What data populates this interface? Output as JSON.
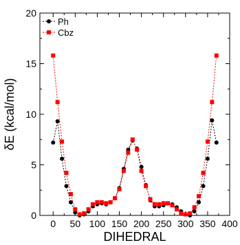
{
  "chart_data": {
    "type": "line",
    "title": "",
    "xlabel": "DIHEDRAL",
    "ylabel": "δE (kcal/mol)",
    "xlim": [
      -30,
      400
    ],
    "ylim": [
      0,
      20
    ],
    "xticks": [
      0,
      50,
      100,
      150,
      200,
      250,
      300,
      350,
      400
    ],
    "yticks": [
      0,
      5,
      10,
      15,
      20
    ],
    "legend_position": "top-left",
    "grid": false,
    "series": [
      {
        "name": "Ph",
        "color": "#000000",
        "marker": "circle",
        "line": "dotted",
        "points": [
          [
            0,
            7.2
          ],
          [
            10,
            9.3
          ],
          [
            20,
            5.6
          ],
          [
            30,
            2.9
          ],
          [
            40,
            1.3
          ],
          [
            50,
            0.3
          ],
          [
            60,
            0.0
          ],
          [
            70,
            0.1
          ],
          [
            80,
            0.4
          ],
          [
            90,
            0.9
          ],
          [
            100,
            1.1
          ],
          [
            110,
            1.2
          ],
          [
            120,
            1.1
          ],
          [
            130,
            1.3
          ],
          [
            140,
            1.7
          ],
          [
            150,
            2.7
          ],
          [
            160,
            4.6
          ],
          [
            170,
            6.5
          ],
          [
            180,
            7.4
          ],
          [
            190,
            6.6
          ],
          [
            200,
            4.8
          ],
          [
            210,
            3.0
          ],
          [
            220,
            1.5
          ],
          [
            230,
            0.9
          ],
          [
            240,
            0.9
          ],
          [
            250,
            1.0
          ],
          [
            260,
            1.2
          ],
          [
            270,
            1.1
          ],
          [
            280,
            0.8
          ],
          [
            290,
            0.4
          ],
          [
            300,
            0.1
          ],
          [
            310,
            0.0
          ],
          [
            320,
            0.4
          ],
          [
            330,
            1.3
          ],
          [
            340,
            2.9
          ],
          [
            350,
            5.6
          ],
          [
            360,
            9.4
          ],
          [
            370,
            7.2
          ]
        ]
      },
      {
        "name": "Cbz",
        "color": "#ff0000",
        "marker": "square",
        "line": "dotted",
        "points": [
          [
            0,
            15.8
          ],
          [
            10,
            11.2
          ],
          [
            20,
            7.3
          ],
          [
            30,
            4.2
          ],
          [
            40,
            2.1
          ],
          [
            50,
            0.6
          ],
          [
            60,
            0.1
          ],
          [
            70,
            0.2
          ],
          [
            80,
            0.6
          ],
          [
            90,
            1.1
          ],
          [
            100,
            1.3
          ],
          [
            110,
            1.3
          ],
          [
            120,
            1.2
          ],
          [
            130,
            1.3
          ],
          [
            140,
            1.7
          ],
          [
            150,
            2.6
          ],
          [
            160,
            4.4
          ],
          [
            170,
            6.2
          ],
          [
            180,
            7.5
          ],
          [
            190,
            6.5
          ],
          [
            200,
            4.4
          ],
          [
            210,
            2.9
          ],
          [
            220,
            1.6
          ],
          [
            230,
            1.1
          ],
          [
            240,
            1.1
          ],
          [
            250,
            1.2
          ],
          [
            260,
            1.2
          ],
          [
            270,
            1.0
          ],
          [
            280,
            0.6
          ],
          [
            290,
            0.2
          ],
          [
            300,
            0.1
          ],
          [
            310,
            0.2
          ],
          [
            320,
            0.8
          ],
          [
            330,
            1.9
          ],
          [
            340,
            4.2
          ],
          [
            350,
            7.3
          ],
          [
            360,
            11.2
          ],
          [
            370,
            15.8
          ]
        ]
      }
    ]
  }
}
